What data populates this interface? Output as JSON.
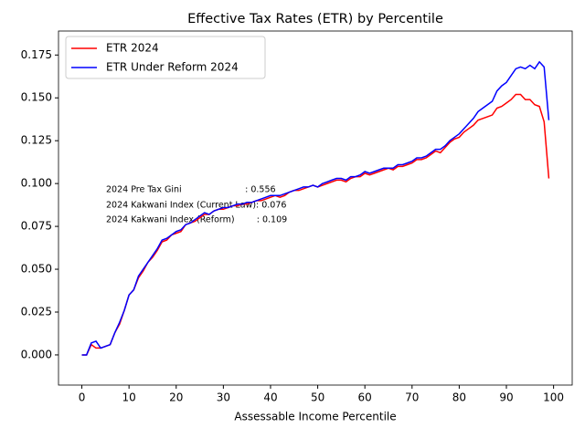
{
  "chart_data": {
    "type": "line",
    "title": "Effective Tax Rates (ETR) by Percentile",
    "x_label": "Assessable Income Percentile",
    "x": [
      0,
      1,
      2,
      3,
      4,
      5,
      6,
      7,
      8,
      9,
      10,
      11,
      12,
      13,
      14,
      15,
      16,
      17,
      18,
      19,
      20,
      21,
      22,
      23,
      24,
      25,
      26,
      27,
      28,
      29,
      30,
      31,
      32,
      33,
      34,
      35,
      36,
      37,
      38,
      39,
      40,
      41,
      42,
      43,
      44,
      45,
      46,
      47,
      48,
      49,
      50,
      51,
      52,
      53,
      54,
      55,
      56,
      57,
      58,
      59,
      60,
      61,
      62,
      63,
      64,
      65,
      66,
      67,
      68,
      69,
      70,
      71,
      72,
      73,
      74,
      75,
      76,
      77,
      78,
      79,
      80,
      81,
      82,
      83,
      84,
      85,
      86,
      87,
      88,
      89,
      90,
      91,
      92,
      93,
      94,
      95,
      96,
      97,
      98,
      99
    ],
    "series": [
      {
        "name": "ETR 2024",
        "color": "#ff0000",
        "values": [
          0,
          0,
          0.006,
          0.004,
          0.004,
          0.005,
          0.006,
          0.013,
          0.018,
          0.026,
          0.035,
          0.038,
          0.045,
          0.049,
          0.054,
          0.057,
          0.061,
          0.066,
          0.067,
          0.07,
          0.071,
          0.072,
          0.076,
          0.077,
          0.078,
          0.08,
          0.082,
          0.082,
          0.084,
          0.085,
          0.085,
          0.086,
          0.087,
          0.087,
          0.088,
          0.088,
          0.089,
          0.09,
          0.09,
          0.091,
          0.092,
          0.093,
          0.092,
          0.093,
          0.095,
          0.096,
          0.096,
          0.097,
          0.098,
          0.099,
          0.098,
          0.099,
          0.1,
          0.101,
          0.102,
          0.102,
          0.101,
          0.103,
          0.104,
          0.104,
          0.106,
          0.105,
          0.106,
          0.107,
          0.108,
          0.109,
          0.108,
          0.11,
          0.11,
          0.111,
          0.112,
          0.114,
          0.114,
          0.115,
          0.117,
          0.119,
          0.118,
          0.121,
          0.124,
          0.126,
          0.127,
          0.13,
          0.132,
          0.134,
          0.137,
          0.138,
          0.139,
          0.14,
          0.144,
          0.145,
          0.147,
          0.149,
          0.152,
          0.152,
          0.149,
          0.149,
          0.146,
          0.145,
          0.136,
          0.103
        ]
      },
      {
        "name": "ETR Under Reform 2024",
        "color": "#0000ff",
        "values": [
          0,
          0,
          0.007,
          0.008,
          0.004,
          0.005,
          0.006,
          0.013,
          0.019,
          0.026,
          0.035,
          0.038,
          0.046,
          0.05,
          0.054,
          0.058,
          0.062,
          0.067,
          0.068,
          0.07,
          0.072,
          0.073,
          0.076,
          0.077,
          0.079,
          0.081,
          0.083,
          0.082,
          0.084,
          0.085,
          0.086,
          0.086,
          0.087,
          0.088,
          0.088,
          0.089,
          0.089,
          0.09,
          0.091,
          0.092,
          0.093,
          0.093,
          0.093,
          0.094,
          0.095,
          0.096,
          0.097,
          0.098,
          0.098,
          0.099,
          0.098,
          0.1,
          0.101,
          0.102,
          0.103,
          0.103,
          0.102,
          0.104,
          0.104,
          0.105,
          0.107,
          0.106,
          0.107,
          0.108,
          0.109,
          0.109,
          0.109,
          0.111,
          0.111,
          0.112,
          0.113,
          0.115,
          0.115,
          0.116,
          0.118,
          0.12,
          0.12,
          0.122,
          0.125,
          0.127,
          0.129,
          0.132,
          0.135,
          0.138,
          0.142,
          0.144,
          0.146,
          0.148,
          0.154,
          0.157,
          0.159,
          0.163,
          0.167,
          0.168,
          0.167,
          0.169,
          0.167,
          0.171,
          0.168,
          0.137
        ]
      }
    ],
    "xlim": [
      -4.95,
      103.95
    ],
    "ylim": [
      -0.0176,
      0.189
    ],
    "xticks": [
      0,
      10,
      20,
      30,
      40,
      50,
      60,
      70,
      80,
      90,
      100
    ],
    "yticks": [
      {
        "value": 0,
        "label": "0.000"
      },
      {
        "value": 0.025,
        "label": "0.025"
      },
      {
        "value": 0.05,
        "label": "0.050"
      },
      {
        "value": 0.075,
        "label": "0.075"
      },
      {
        "value": 0.1,
        "label": "0.100"
      },
      {
        "value": 0.125,
        "label": "0.125"
      },
      {
        "value": 0.15,
        "label": "0.150"
      },
      {
        "value": 0.175,
        "label": "0.175"
      }
    ],
    "legend": "upper left",
    "annotations": [
      "2024 Pre Tax Gini                       : 0.556",
      "2024 Kakwani Index (Current Law): 0.076",
      "2024 Kakwani Index (Reform)        : 0.109"
    ]
  }
}
